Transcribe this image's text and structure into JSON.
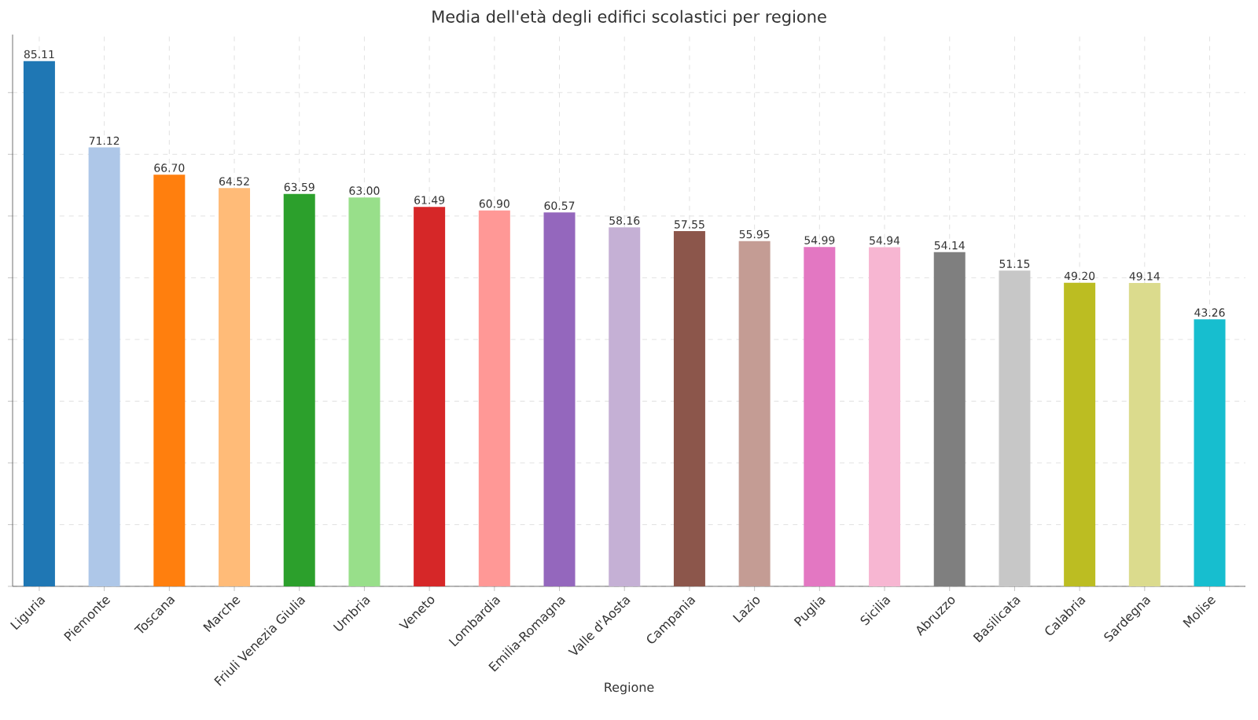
{
  "chart_data": {
    "type": "bar",
    "title": "Media dell'età degli edifici scolastici per regione",
    "xlabel": "Regione",
    "categories": [
      "Liguria",
      "Piemonte",
      "Toscana",
      "Marche",
      "Friuli Venezia Giulia",
      "Umbria",
      "Veneto",
      "Lombardia",
      "Emilia-Romagna",
      "Valle d'Aosta",
      "Campania",
      "Lazio",
      "Puglia",
      "Sicilia",
      "Abruzzo",
      "Basilicata",
      "Calabria",
      "Sardegna",
      "Molise"
    ],
    "values": [
      85.11,
      71.12,
      66.7,
      64.52,
      63.59,
      63.0,
      61.49,
      60.9,
      60.57,
      58.16,
      57.55,
      55.95,
      54.99,
      54.94,
      54.14,
      51.15,
      49.2,
      49.14,
      43.26
    ],
    "colors": [
      "#1f77b4",
      "#aec7e8",
      "#ff7f0e",
      "#ffbb78",
      "#2ca02c",
      "#98df8a",
      "#d62728",
      "#ff9896",
      "#9467bd",
      "#c5b0d5",
      "#8c564b",
      "#c49c94",
      "#e377c2",
      "#f7b6d2",
      "#7f7f7f",
      "#c7c7c7",
      "#bcbd22",
      "#dbdb8d",
      "#17becf"
    ],
    "ylim": [
      0,
      89.4
    ],
    "yticks": [
      {
        "value": 0,
        "label": null
      },
      {
        "value": 10,
        "label": null
      },
      {
        "value": 20,
        "label": null
      },
      {
        "value": 30,
        "label": null
      },
      {
        "value": 40,
        "label": null
      },
      {
        "value": 50,
        "label": null
      },
      {
        "value": 60,
        "label": null
      },
      {
        "value": 70,
        "label": null
      },
      {
        "value": 80,
        "label": null
      }
    ],
    "value_labels": [
      "85.11",
      "71.12",
      "66.70",
      "64.52",
      "63.59",
      "63.00",
      "61.49",
      "60.90",
      "60.57",
      "58.16",
      "57.55",
      "55.95",
      "54.99",
      "54.94",
      "54.14",
      "51.15",
      "49.20",
      "49.14",
      "43.26"
    ],
    "tick_labels": "x",
    "grid": true
  }
}
